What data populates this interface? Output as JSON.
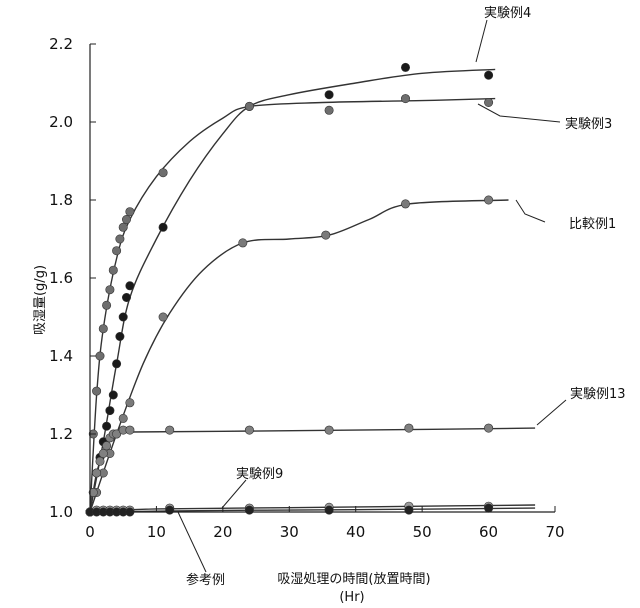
{
  "chart_data": {
    "type": "scatter",
    "xlabel": "吸湿処理の時間(放置時間)",
    "xlabel_unit": "(Hr)",
    "ylabel": "吸湿量(g/g)",
    "xlim": [
      0,
      70
    ],
    "ylim": [
      1.0,
      2.2
    ],
    "xticks": [
      "0",
      "10",
      "20",
      "30",
      "40",
      "50",
      "60",
      "70"
    ],
    "yticks": [
      "1.0",
      "1.2",
      "1.4",
      "1.6",
      "1.8",
      "2.0",
      "2.2"
    ],
    "grid": false,
    "series": [
      {
        "name": "実験例4",
        "color": "#1a1a1a",
        "points": [
          [
            0,
            1.0
          ],
          [
            0.5,
            1.05
          ],
          [
            1,
            1.1
          ],
          [
            1.5,
            1.14
          ],
          [
            2,
            1.18
          ],
          [
            2.5,
            1.22
          ],
          [
            3,
            1.26
          ],
          [
            3.5,
            1.3
          ],
          [
            4,
            1.38
          ],
          [
            4.5,
            1.45
          ],
          [
            5,
            1.5
          ],
          [
            5.5,
            1.55
          ],
          [
            6,
            1.58
          ],
          [
            11,
            1.73
          ],
          [
            24,
            2.04
          ],
          [
            36,
            2.07
          ],
          [
            47.5,
            2.14
          ],
          [
            60,
            2.12
          ]
        ],
        "curve": [
          [
            0,
            1.0
          ],
          [
            2,
            1.18
          ],
          [
            4,
            1.38
          ],
          [
            6,
            1.55
          ],
          [
            10,
            1.7
          ],
          [
            15,
            1.85
          ],
          [
            20,
            1.97
          ],
          [
            24,
            2.04
          ],
          [
            30,
            2.07
          ],
          [
            40,
            2.1
          ],
          [
            50,
            2.125
          ],
          [
            61,
            2.135
          ]
        ]
      },
      {
        "name": "実験例3",
        "color": "#6e6e6e",
        "points": [
          [
            0,
            1.0
          ],
          [
            0.5,
            1.2
          ],
          [
            1,
            1.31
          ],
          [
            1.5,
            1.4
          ],
          [
            2,
            1.47
          ],
          [
            2.5,
            1.53
          ],
          [
            3,
            1.57
          ],
          [
            3.5,
            1.62
          ],
          [
            4,
            1.67
          ],
          [
            4.5,
            1.7
          ],
          [
            5,
            1.73
          ],
          [
            5.5,
            1.75
          ],
          [
            6,
            1.77
          ],
          [
            11,
            1.87
          ],
          [
            24,
            2.04
          ],
          [
            36,
            2.03
          ],
          [
            47.5,
            2.06
          ],
          [
            60,
            2.05
          ]
        ],
        "curve": [
          [
            0,
            1.0
          ],
          [
            1,
            1.3
          ],
          [
            2,
            1.47
          ],
          [
            4,
            1.65
          ],
          [
            6,
            1.75
          ],
          [
            10,
            1.86
          ],
          [
            15,
            1.95
          ],
          [
            20,
            2.01
          ],
          [
            24,
            2.04
          ],
          [
            35,
            2.05
          ],
          [
            50,
            2.055
          ],
          [
            61,
            2.06
          ]
        ]
      },
      {
        "name": "比較例1",
        "color": "#7a7a7a",
        "points": [
          [
            0,
            1.0
          ],
          [
            1,
            1.05
          ],
          [
            2,
            1.1
          ],
          [
            3,
            1.15
          ],
          [
            4,
            1.2
          ],
          [
            5,
            1.24
          ],
          [
            6,
            1.28
          ],
          [
            11,
            1.5
          ],
          [
            23,
            1.69
          ],
          [
            35.5,
            1.71
          ],
          [
            47.5,
            1.79
          ],
          [
            60,
            1.8
          ]
        ],
        "curve": [
          [
            0,
            1.0
          ],
          [
            4,
            1.2
          ],
          [
            8,
            1.38
          ],
          [
            12,
            1.51
          ],
          [
            17,
            1.62
          ],
          [
            23,
            1.69
          ],
          [
            30,
            1.7
          ],
          [
            36,
            1.71
          ],
          [
            42,
            1.75
          ],
          [
            48,
            1.79
          ],
          [
            63,
            1.8
          ]
        ]
      },
      {
        "name": "実験例13",
        "color": "#808080",
        "points": [
          [
            0,
            1.0
          ],
          [
            0.5,
            1.05
          ],
          [
            1,
            1.1
          ],
          [
            1.5,
            1.13
          ],
          [
            2,
            1.15
          ],
          [
            2.5,
            1.17
          ],
          [
            3,
            1.19
          ],
          [
            3.5,
            1.2
          ],
          [
            4,
            1.2
          ],
          [
            5,
            1.21
          ],
          [
            6,
            1.21
          ],
          [
            12,
            1.21
          ],
          [
            24,
            1.21
          ],
          [
            36,
            1.21
          ],
          [
            48,
            1.215
          ],
          [
            60,
            1.215
          ]
        ],
        "curve": [
          [
            0,
            1.0
          ],
          [
            1,
            1.1
          ],
          [
            2,
            1.15
          ],
          [
            3,
            1.19
          ],
          [
            4,
            1.2
          ],
          [
            6,
            1.205
          ],
          [
            20,
            1.207
          ],
          [
            40,
            1.21
          ],
          [
            67,
            1.215
          ]
        ]
      },
      {
        "name": "実験例9",
        "color": "#9a9a9a",
        "points": [
          [
            0,
            1.0
          ],
          [
            1,
            1.005
          ],
          [
            2,
            1.005
          ],
          [
            3,
            1.005
          ],
          [
            4,
            1.005
          ],
          [
            5,
            1.005
          ],
          [
            6,
            1.005
          ],
          [
            12,
            1.01
          ],
          [
            24,
            1.01
          ],
          [
            36,
            1.012
          ],
          [
            48,
            1.015
          ],
          [
            60,
            1.015
          ]
        ],
        "curve": [
          [
            0,
            1.0
          ],
          [
            10,
            1.008
          ],
          [
            30,
            1.011
          ],
          [
            50,
            1.015
          ],
          [
            67,
            1.018
          ]
        ]
      },
      {
        "name": "参考例",
        "color": "#222222",
        "points": [
          [
            0,
            1.0
          ],
          [
            1,
            1.0
          ],
          [
            2,
            1.0
          ],
          [
            3,
            1.0
          ],
          [
            4,
            1.0
          ],
          [
            5,
            1.0
          ],
          [
            6,
            1.0
          ],
          [
            12,
            1.005
          ],
          [
            24,
            1.005
          ],
          [
            36,
            1.005
          ],
          [
            48,
            1.005
          ],
          [
            60,
            1.01
          ]
        ],
        "curve": [
          [
            0,
            1.0
          ],
          [
            20,
            1.004
          ],
          [
            40,
            1.006
          ],
          [
            67,
            1.01
          ]
        ]
      }
    ],
    "annotations": [
      {
        "text": "実験例4"
      },
      {
        "text": "実験例3"
      },
      {
        "text": "比較例1"
      },
      {
        "text": "実験例13"
      },
      {
        "text": "実験例9"
      },
      {
        "text": "参考例"
      }
    ]
  }
}
